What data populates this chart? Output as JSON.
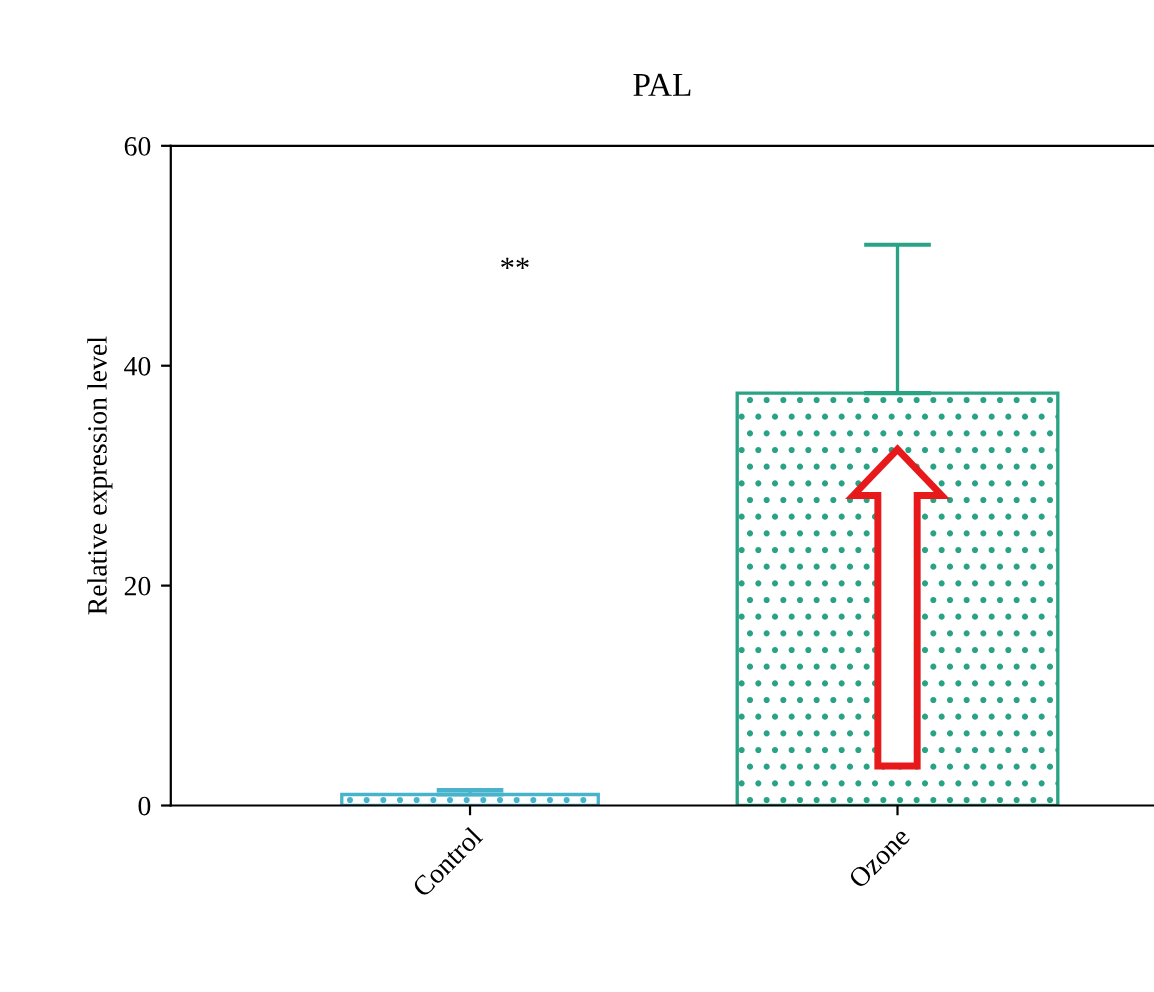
{
  "chart_data": {
    "type": "bar",
    "title": "PAL",
    "ylabel": "Relative expression level",
    "categories": [
      "Control",
      "Ozone"
    ],
    "values": [
      1.0,
      37.5
    ],
    "errors": [
      [
        1.0,
        1.4
      ],
      [
        37.5,
        51
      ]
    ],
    "colors": [
      "#4ab3cc",
      "#2aa385"
    ],
    "ylim": [
      0,
      60
    ],
    "yticks": [
      0,
      20,
      40,
      60
    ],
    "grid": false,
    "annotations": [
      "**"
    ]
  }
}
